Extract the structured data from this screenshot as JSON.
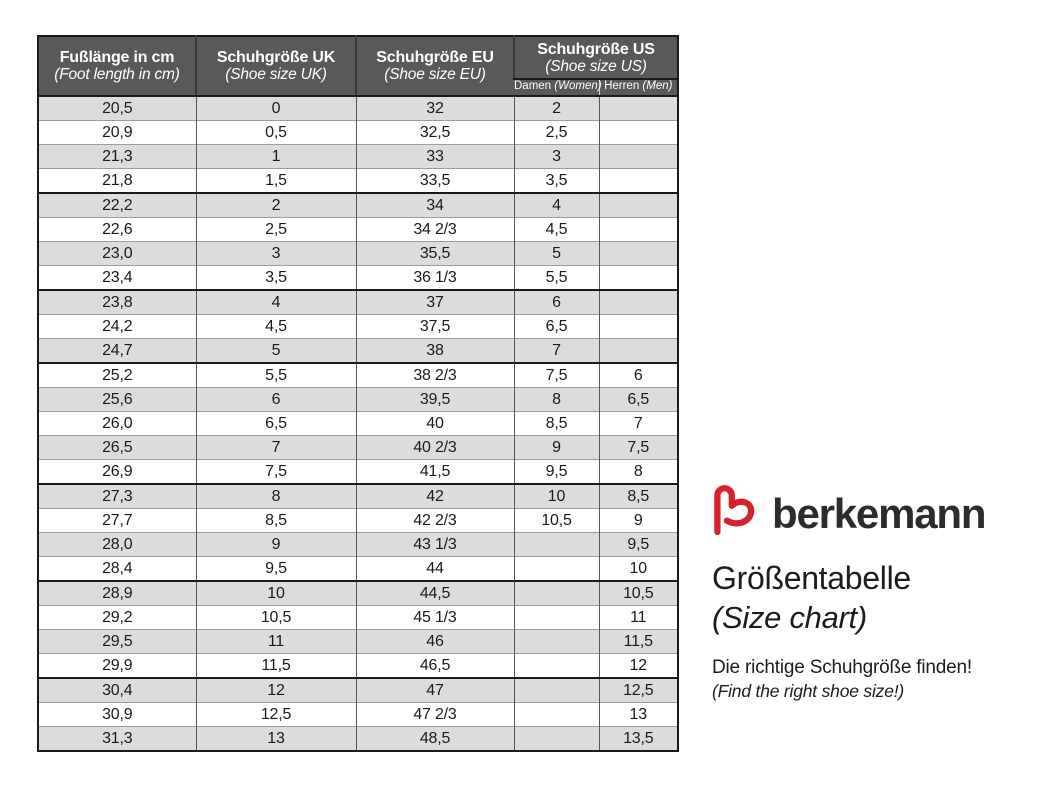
{
  "colors": {
    "header_bg": "#59595b",
    "row_shade": "#dcdcdd",
    "row_plain": "#ffffff",
    "border_dark": "#1a1a1a",
    "brand_red": "#d6212f",
    "wordmark_color": "#2c2c2e",
    "text": "#1a1a1a"
  },
  "table": {
    "header": {
      "foot_length": {
        "de": "Fußlänge in cm",
        "en": "(Foot length in cm)"
      },
      "uk": {
        "de": "Schuhgröße UK",
        "en": "(Shoe size UK)"
      },
      "eu": {
        "de": "Schuhgröße EU",
        "en": "(Shoe size EU)"
      },
      "us": {
        "de": "Schuhgröße US",
        "en": "(Shoe size US)",
        "damen_de": "Damen",
        "damen_en": "(Women)",
        "herren_de": "Herren",
        "herren_en": "(Men)"
      }
    },
    "group_break_rows": [
      5,
      9,
      12,
      17,
      21,
      25
    ],
    "rows": [
      [
        "20,5",
        "0",
        "32",
        "2",
        ""
      ],
      [
        "20,9",
        "0,5",
        "32,5",
        "2,5",
        ""
      ],
      [
        "21,3",
        "1",
        "33",
        "3",
        ""
      ],
      [
        "21,8",
        "1,5",
        "33,5",
        "3,5",
        ""
      ],
      [
        "22,2",
        "2",
        "34",
        "4",
        ""
      ],
      [
        "22,6",
        "2,5",
        "34 2/3",
        "4,5",
        ""
      ],
      [
        "23,0",
        "3",
        "35,5",
        "5",
        ""
      ],
      [
        "23,4",
        "3,5",
        "36 1/3",
        "5,5",
        ""
      ],
      [
        "23,8",
        "4",
        "37",
        "6",
        ""
      ],
      [
        "24,2",
        "4,5",
        "37,5",
        "6,5",
        ""
      ],
      [
        "24,7",
        "5",
        "38",
        "7",
        ""
      ],
      [
        "25,2",
        "5,5",
        "38 2/3",
        "7,5",
        "6"
      ],
      [
        "25,6",
        "6",
        "39,5",
        "8",
        "6,5"
      ],
      [
        "26,0",
        "6,5",
        "40",
        "8,5",
        "7"
      ],
      [
        "26,5",
        "7",
        "40 2/3",
        "9",
        "7,5"
      ],
      [
        "26,9",
        "7,5",
        "41,5",
        "9,5",
        "8"
      ],
      [
        "27,3",
        "8",
        "42",
        "10",
        "8,5"
      ],
      [
        "27,7",
        "8,5",
        "42 2/3",
        "10,5",
        "9"
      ],
      [
        "28,0",
        "9",
        "43 1/3",
        "",
        "9,5"
      ],
      [
        "28,4",
        "9,5",
        "44",
        "",
        "10"
      ],
      [
        "28,9",
        "10",
        "44,5",
        "",
        "10,5"
      ],
      [
        "29,2",
        "10,5",
        "45 1/3",
        "",
        "11"
      ],
      [
        "29,5",
        "11",
        "46",
        "",
        "11,5"
      ],
      [
        "29,9",
        "11,5",
        "46,5",
        "",
        "12"
      ],
      [
        "30,4",
        "12",
        "47",
        "",
        "12,5"
      ],
      [
        "30,9",
        "12,5",
        "47 2/3",
        "",
        "13"
      ],
      [
        "31,3",
        "13",
        "48,5",
        "",
        "13,5"
      ]
    ]
  },
  "brand": {
    "logo_icon": "berkemann-b-logo",
    "wordmark": "berkemann",
    "title_de": "Größentabelle",
    "title_en": "(Size chart)",
    "tagline_de": "Die richtige Schuhgröße finden!",
    "tagline_en": "(Find the right shoe size!)"
  }
}
